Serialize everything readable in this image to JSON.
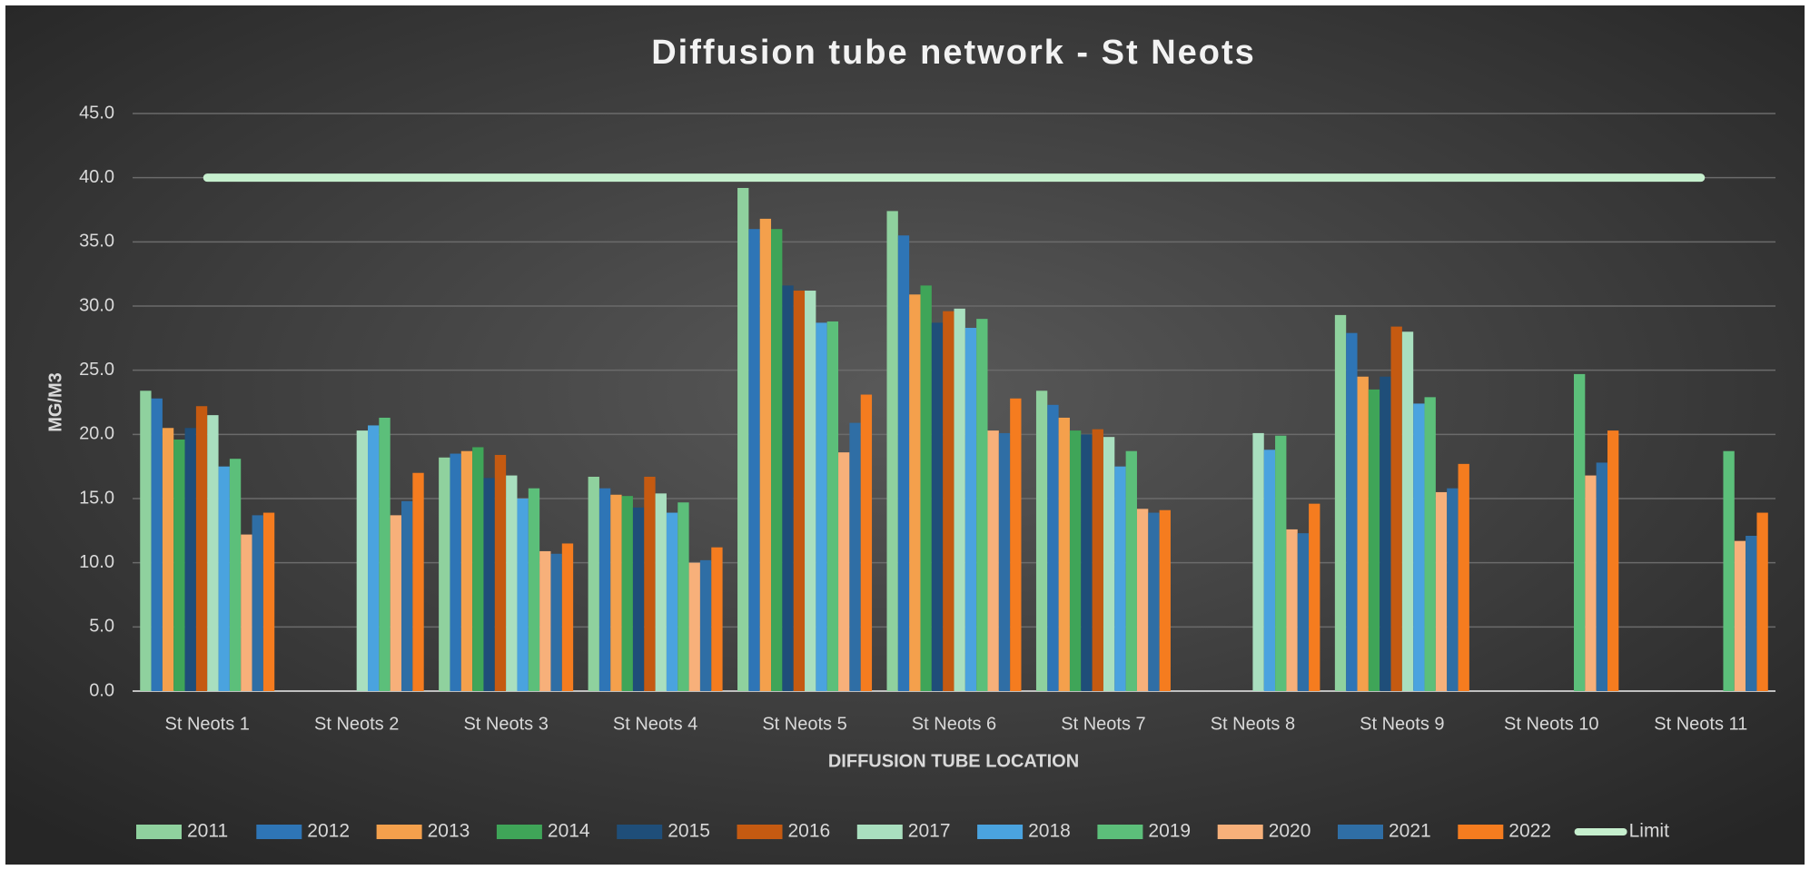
{
  "chart_data": {
    "type": "bar",
    "title": "Diffusion tube network - St Neots",
    "x_label": "DIFFUSION TUBE LOCATION",
    "y_label": "MG/M3",
    "categories": [
      "St Neots 1",
      "St Neots 2",
      "St Neots 3",
      "St Neots 4",
      "St Neots 5",
      "St Neots 6",
      "St Neots 7",
      "St Neots 8",
      "St Neots 9",
      "St Neots 10",
      "St Neots 11"
    ],
    "ylim": [
      0,
      45
    ],
    "yticks": [
      {
        "value": 0,
        "label": "0.0"
      },
      {
        "value": 5,
        "label": "5.0"
      },
      {
        "value": 10,
        "label": "10.0"
      },
      {
        "value": 15,
        "label": "15.0"
      },
      {
        "value": 20,
        "label": "20.0"
      },
      {
        "value": 25,
        "label": "25.0"
      },
      {
        "value": 30,
        "label": "30.0"
      },
      {
        "value": 35,
        "label": "35.0"
      },
      {
        "value": 40,
        "label": "40.0"
      },
      {
        "value": 45,
        "label": "45.0"
      }
    ],
    "grid": true,
    "legend": "bottom",
    "series": [
      {
        "name": "2011",
        "color": "#8fd19e",
        "values": [
          23.4,
          null,
          18.2,
          16.7,
          39.2,
          37.4,
          23.4,
          null,
          29.3,
          null,
          null
        ]
      },
      {
        "name": "2012",
        "color": "#2e75b6",
        "values": [
          22.8,
          null,
          18.5,
          15.8,
          36.0,
          35.5,
          22.3,
          null,
          27.9,
          null,
          null
        ]
      },
      {
        "name": "2013",
        "color": "#f4a04c",
        "values": [
          20.5,
          null,
          18.7,
          15.3,
          36.8,
          30.9,
          21.3,
          null,
          24.5,
          null,
          null
        ]
      },
      {
        "name": "2014",
        "color": "#3fa558",
        "values": [
          19.6,
          null,
          19.0,
          15.2,
          36.0,
          31.6,
          20.3,
          null,
          23.5,
          null,
          null
        ]
      },
      {
        "name": "2015",
        "color": "#1f4e79",
        "values": [
          20.5,
          null,
          16.6,
          14.3,
          31.6,
          28.7,
          20.0,
          null,
          24.5,
          null,
          null
        ]
      },
      {
        "name": "2016",
        "color": "#c55a11",
        "values": [
          22.2,
          null,
          18.4,
          16.7,
          31.2,
          29.6,
          20.4,
          null,
          28.4,
          null,
          null
        ]
      },
      {
        "name": "2017",
        "color": "#a9dfbf",
        "values": [
          21.5,
          20.3,
          16.8,
          15.4,
          31.2,
          29.8,
          19.8,
          20.1,
          28.0,
          null,
          null
        ]
      },
      {
        "name": "2018",
        "color": "#4aa3df",
        "values": [
          17.5,
          20.7,
          15.0,
          13.9,
          28.7,
          28.3,
          17.5,
          18.8,
          22.4,
          null,
          null
        ]
      },
      {
        "name": "2019",
        "color": "#5cbf7a",
        "values": [
          18.1,
          21.3,
          15.8,
          14.7,
          28.8,
          29.0,
          18.7,
          19.9,
          22.9,
          24.7,
          18.7
        ]
      },
      {
        "name": "2020",
        "color": "#f7b07a",
        "values": [
          12.2,
          13.7,
          10.9,
          10.0,
          18.6,
          20.3,
          14.2,
          12.6,
          15.5,
          16.8,
          11.7
        ]
      },
      {
        "name": "2021",
        "color": "#2f6ea5",
        "values": [
          13.7,
          14.8,
          10.7,
          10.2,
          20.9,
          20.1,
          13.9,
          12.3,
          15.8,
          17.8,
          12.1
        ]
      },
      {
        "name": "2022",
        "color": "#f57c1f",
        "values": [
          13.9,
          17.0,
          11.5,
          11.2,
          23.1,
          22.8,
          14.1,
          14.6,
          17.7,
          20.3,
          13.9
        ]
      },
      {
        "name": "Limit",
        "color": "#c6efce",
        "type": "line",
        "values": [
          40,
          40,
          40,
          40,
          40,
          40,
          40,
          40,
          40,
          40,
          40
        ]
      }
    ]
  }
}
